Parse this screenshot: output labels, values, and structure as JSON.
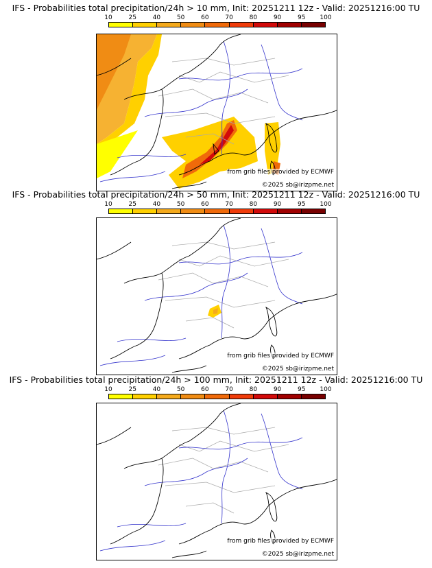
{
  "colorbar": {
    "ticks": [
      "10",
      "25",
      "40",
      "50",
      "60",
      "70",
      "80",
      "90",
      "95",
      "100"
    ],
    "colors": [
      "#ffff00",
      "#ffd000",
      "#f5aa1c",
      "#f08c14",
      "#f06a0a",
      "#f03c0a",
      "#d20a0a",
      "#a00000",
      "#780000"
    ]
  },
  "panels": [
    {
      "title": "IFS - Probabilities total precipitation/24h > 10 mm, Init: 20251211 12z - Valid: 20251216:00 TU",
      "source_text": "from grib files provided by ECMWF",
      "copyright_text": "©2025 sb@irizpme.net"
    },
    {
      "title": "IFS - Probabilities total precipitation/24h > 50 mm, Init: 20251211 12z - Valid: 20251216:00 TU",
      "source_text": "from grib files provided by ECMWF",
      "copyright_text": "©2025 sb@irizpme.net"
    },
    {
      "title": "IFS - Probabilities total precipitation/24h > 100 mm, Init: 20251211 12z - Valid: 20251216:00 TU",
      "source_text": "from grib files provided by ECMWF",
      "copyright_text": "©2025 sb@irizpme.net"
    }
  ],
  "map_colors": {
    "coast": "#000000",
    "rivers": "#3333cc",
    "borders": "#aaaaaa"
  }
}
